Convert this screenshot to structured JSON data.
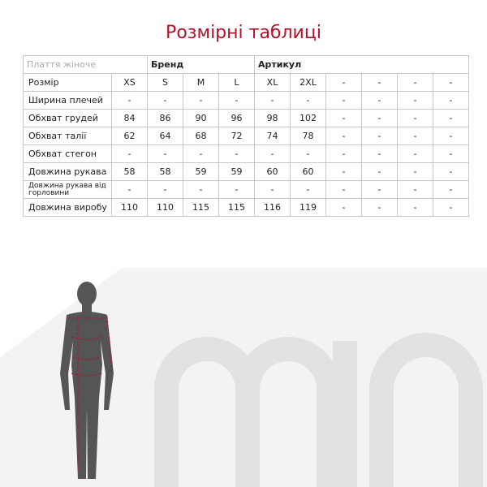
{
  "title": "Розмірні таблиці",
  "header": {
    "product": "Плаття жіноче",
    "brand": "Бренд",
    "article": "Артикул"
  },
  "rows": [
    {
      "label": "Розмір",
      "values": [
        "XS",
        "S",
        "M",
        "L",
        "XL",
        "2XL",
        "-",
        "-",
        "-",
        "-"
      ]
    },
    {
      "label": "Ширина плечей",
      "values": [
        "-",
        "-",
        "-",
        "-",
        "-",
        "-",
        "-",
        "-",
        "-",
        "-"
      ]
    },
    {
      "label": "Обхват грудей",
      "values": [
        "84",
        "86",
        "90",
        "96",
        "98",
        "102",
        "-",
        "-",
        "-",
        "-"
      ]
    },
    {
      "label": "Обхват талії",
      "values": [
        "62",
        "64",
        "68",
        "72",
        "74",
        "78",
        "-",
        "-",
        "-",
        "-"
      ]
    },
    {
      "label": "Обхват стегон",
      "values": [
        "-",
        "-",
        "-",
        "-",
        "-",
        "-",
        "-",
        "-",
        "-",
        "-"
      ]
    },
    {
      "label": "Довжина рукава",
      "values": [
        "58",
        "58",
        "59",
        "59",
        "60",
        "60",
        "-",
        "-",
        "-",
        "-"
      ]
    },
    {
      "label": "Довжина рукава від горловини",
      "values": [
        "-",
        "-",
        "-",
        "-",
        "-",
        "-",
        "-",
        "-",
        "-",
        "-"
      ]
    },
    {
      "label": "Довжина виробу",
      "values": [
        "110",
        "110",
        "115",
        "115",
        "116",
        "119",
        "-",
        "-",
        "-",
        "-"
      ]
    }
  ],
  "logo": "min",
  "colors": {
    "accent": "#b5122a",
    "logo": "#e6e6e6"
  }
}
